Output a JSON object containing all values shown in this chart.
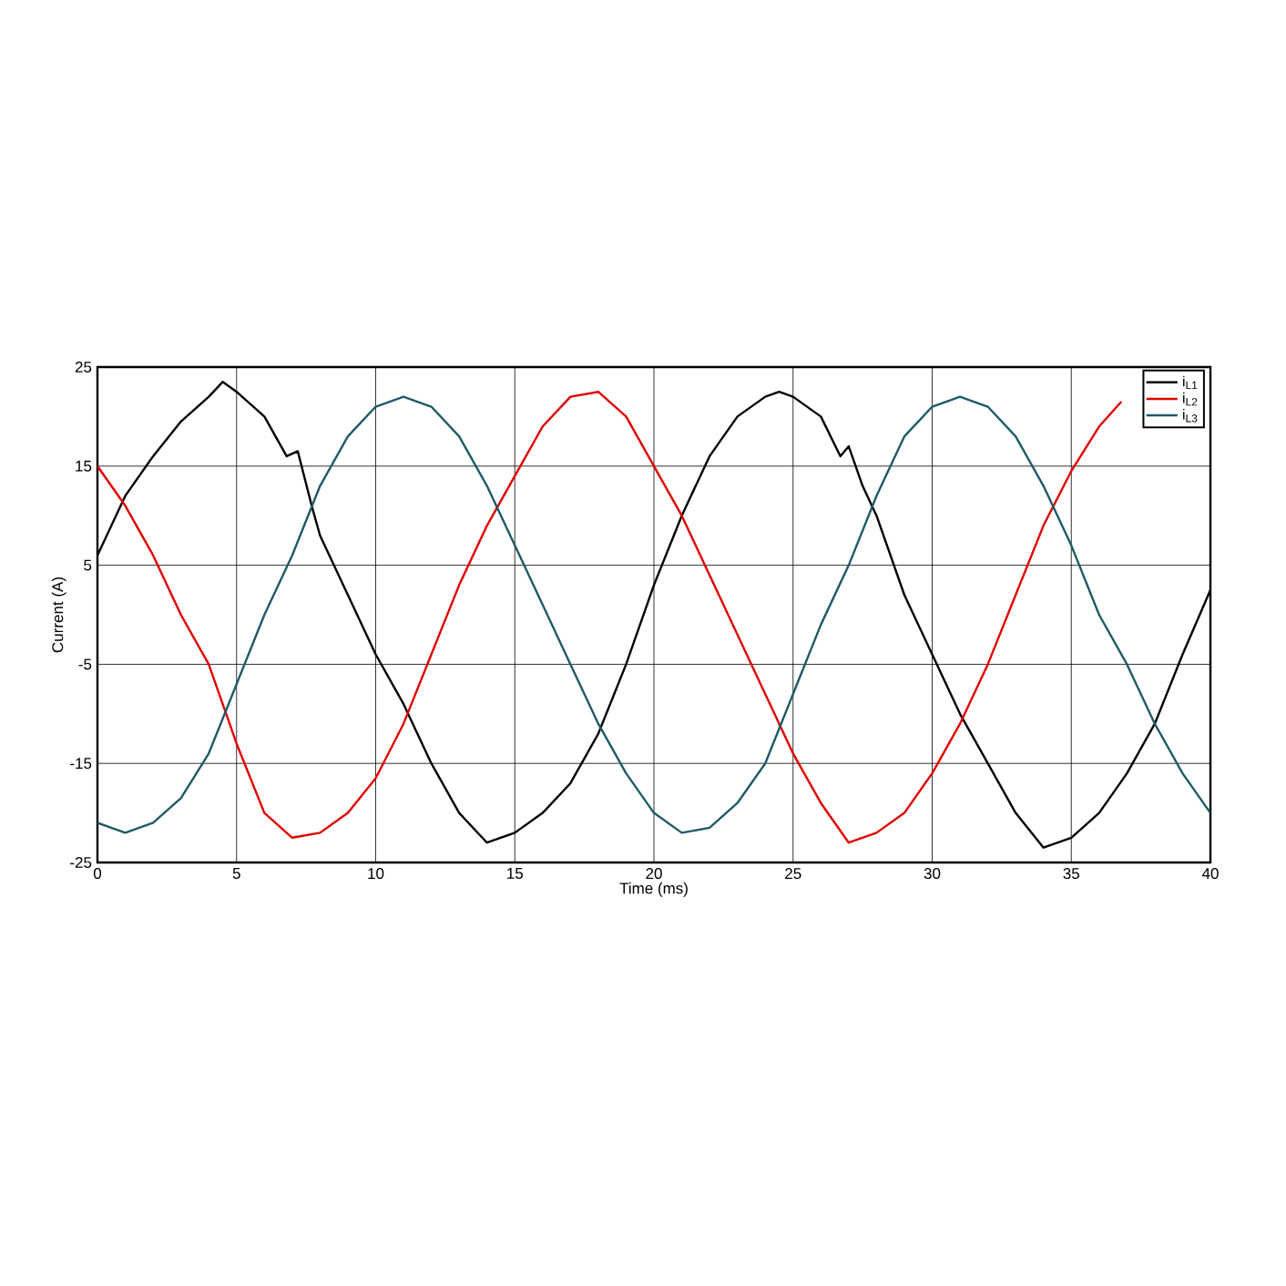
{
  "chart_data": {
    "type": "line",
    "xlabel": "Time (ms)",
    "ylabel": "Current (A)",
    "xlim": [
      0,
      40
    ],
    "ylim": [
      -25,
      25
    ],
    "xticks": [
      0,
      5,
      10,
      15,
      20,
      25,
      30,
      35,
      40
    ],
    "yticks": [
      -25,
      -15,
      -5,
      5,
      15,
      25
    ],
    "grid": true,
    "legend": "top right",
    "series": [
      {
        "name": "i$_{L1}$",
        "color": "#000000",
        "x": [
          0,
          1,
          2,
          3,
          4,
          4.5,
          5,
          6,
          6.8,
          7.2,
          7.7,
          8,
          9,
          10,
          11,
          12,
          13,
          14,
          15,
          16,
          17,
          18,
          19,
          20,
          21,
          22,
          23,
          24,
          24.5,
          25,
          26,
          26.7,
          27,
          27.5,
          28,
          29,
          30,
          31,
          32,
          33,
          34,
          35,
          36,
          37,
          38,
          39,
          40
        ],
        "values": [
          6,
          12,
          16,
          19.5,
          22,
          23.5,
          22.5,
          20,
          16,
          16.5,
          11,
          8,
          2,
          -4,
          -9,
          -15,
          -20,
          -23,
          -22,
          -20,
          -17,
          -12,
          -5,
          3,
          10,
          16,
          20,
          22,
          22.5,
          22,
          20,
          16,
          17,
          13,
          10,
          2,
          -4,
          -10,
          -15,
          -20,
          -23.5,
          -22.5,
          -20,
          -16,
          -11,
          -4,
          2.5
        ]
      },
      {
        "name": "i$_{L2}$",
        "color": "#e00000",
        "x": [
          0,
          1,
          2,
          3,
          4,
          5,
          6,
          7,
          8,
          9,
          10,
          11,
          12,
          13,
          14,
          15,
          16,
          17,
          18,
          19,
          20,
          21,
          22,
          23,
          24,
          25,
          26,
          27,
          28,
          29,
          30,
          31,
          32,
          33,
          34,
          35,
          36,
          36.8
        ],
        "values": [
          15,
          11,
          6,
          0,
          -5,
          -13,
          -20,
          -22.5,
          -22,
          -20,
          -16.5,
          -11,
          -4,
          3,
          9,
          14,
          19,
          22,
          22.5,
          20,
          15,
          10,
          4,
          -2,
          -8,
          -14,
          -19,
          -23,
          -22,
          -20,
          -16,
          -11,
          -5,
          2,
          9,
          14.5,
          19,
          21.5
        ]
      },
      {
        "name": "i$_{L3}$",
        "color": "#1f5a66",
        "x": [
          0,
          1,
          2,
          3,
          4,
          5,
          6,
          7,
          8,
          9,
          10,
          11,
          12,
          13,
          14,
          15,
          16,
          17,
          18,
          19,
          20,
          21,
          22,
          23,
          24,
          25,
          26,
          27,
          28,
          29,
          30,
          31,
          32,
          33,
          34,
          35,
          36,
          37,
          38,
          39,
          40
        ],
        "values": [
          -21,
          -22,
          -21,
          -18.5,
          -14,
          -7,
          0,
          6,
          13,
          18,
          21,
          22,
          21,
          18,
          13,
          7,
          1,
          -5,
          -11,
          -16,
          -20,
          -22,
          -21.5,
          -19,
          -15,
          -8,
          -1,
          5,
          12,
          18,
          21,
          22,
          21,
          18,
          13,
          7,
          0,
          -5,
          -11,
          -16,
          -20
        ]
      }
    ]
  }
}
